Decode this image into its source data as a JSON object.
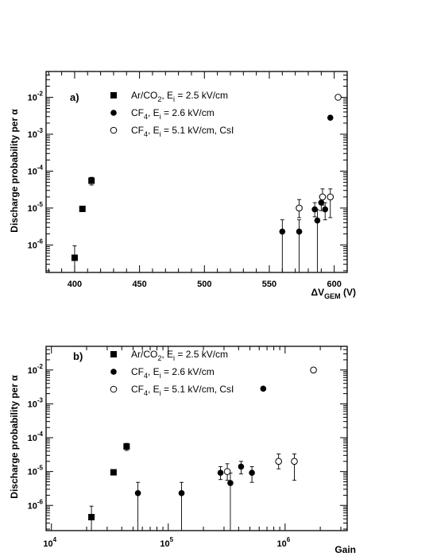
{
  "chart_data": [
    {
      "type": "scatter",
      "panel_label": "a)",
      "xlabel": "ΔV",
      "xlabel_sub": "GEM",
      "xlabel_unit": "(V)",
      "ylabel": "Discharge probability per  α",
      "xscale": "linear",
      "yscale": "log",
      "xlim": [
        378,
        610
      ],
      "ylim": [
        1.8e-07,
        0.05
      ],
      "xticks": [
        {
          "v": 400,
          "l": "400"
        },
        {
          "v": 450,
          "l": "450"
        },
        {
          "v": 500,
          "l": "500"
        },
        {
          "v": 550,
          "l": "550"
        },
        {
          "v": 600,
          "l": "600"
        }
      ],
      "yticks": [
        {
          "v": 1e-06,
          "b": "10",
          "e": "-6"
        },
        {
          "v": 1e-05,
          "b": "10",
          "e": "-5"
        },
        {
          "v": 0.0001,
          "b": "10",
          "e": "-4"
        },
        {
          "v": 0.001,
          "b": "10",
          "e": "-3"
        },
        {
          "v": 0.01,
          "b": "10",
          "e": "-2"
        }
      ],
      "legend": "top-left",
      "series": [
        {
          "name_main": "Ar/CO",
          "name_sub": "2",
          "name_rest": ", E",
          "name_sub2": "i",
          "name_tail": " = 2.5 kV/cm",
          "marker": "square",
          "points": [
            {
              "x": 400,
              "y": 4.5e-07,
              "lo": 1.5e-07,
              "hi": 9.5e-07
            },
            {
              "x": 406,
              "y": 9.5e-06,
              "lo": 8.5e-06,
              "hi": 1.05e-05
            },
            {
              "x": 413,
              "y": 5.5e-05,
              "lo": 4.2e-05,
              "hi": 6.8e-05
            }
          ]
        },
        {
          "name_main": "CF",
          "name_sub": "4",
          "name_rest": ", E",
          "name_sub2": "i",
          "name_tail": " = 2.6 kV/cm",
          "marker": "filled-circle",
          "points": [
            {
              "x": 560,
              "y": 2.3e-06,
              "lo": 1.8e-07,
              "hi": 4.8e-06
            },
            {
              "x": 573,
              "y": 2.3e-06,
              "lo": 1.8e-07,
              "hi": 4.8e-06
            },
            {
              "x": 585,
              "y": 9.2e-06,
              "lo": 5.8e-06,
              "hi": 1.4e-05
            },
            {
              "x": 587,
              "y": 4.6e-06,
              "lo": 1.8e-07,
              "hi": 9e-06
            },
            {
              "x": 590,
              "y": 1.4e-05,
              "lo": 8.5e-06,
              "hi": 2e-05
            },
            {
              "x": 593,
              "y": 9.2e-06,
              "lo": 4.8e-06,
              "hi": 1.4e-05
            },
            {
              "x": 597,
              "y": 0.0028,
              "lo": 0.0028,
              "hi": 0.0028
            }
          ]
        },
        {
          "name_main": "CF",
          "name_sub": "4",
          "name_rest": ", E",
          "name_sub2": "i",
          "name_tail": " = 5.1 kV/cm, CsI",
          "marker": "open-circle",
          "points": [
            {
              "x": 573,
              "y": 1e-05,
              "lo": 5.5e-06,
              "hi": 1.7e-05
            },
            {
              "x": 591,
              "y": 2e-05,
              "lo": 1.2e-05,
              "hi": 3.3e-05
            },
            {
              "x": 597,
              "y": 2e-05,
              "lo": 5.5e-06,
              "hi": 3.3e-05
            },
            {
              "x": 603,
              "y": 0.01,
              "lo": 0.01,
              "hi": 0.01
            }
          ]
        }
      ]
    },
    {
      "type": "scatter",
      "panel_label": "b)",
      "xlabel": "Gain",
      "ylabel": "Discharge probability per  α",
      "xscale": "log",
      "yscale": "log",
      "xlim": [
        9000,
        3400000
      ],
      "ylim": [
        1.8e-07,
        0.05
      ],
      "xticks": [
        {
          "v": 10000,
          "b": "10",
          "e": "4"
        },
        {
          "v": 100000,
          "b": "10",
          "e": "5"
        },
        {
          "v": 1000000,
          "b": "10",
          "e": "6"
        }
      ],
      "yticks": [
        {
          "v": 1e-06,
          "b": "10",
          "e": "-6"
        },
        {
          "v": 1e-05,
          "b": "10",
          "e": "-5"
        },
        {
          "v": 0.0001,
          "b": "10",
          "e": "-4"
        },
        {
          "v": 0.001,
          "b": "10",
          "e": "-3"
        },
        {
          "v": 0.01,
          "b": "10",
          "e": "-2"
        }
      ],
      "legend": "top-left",
      "series": [
        {
          "name_main": "Ar/CO",
          "name_sub": "2",
          "name_rest": ", E",
          "name_sub2": "i",
          "name_tail": " = 2.5 kV/cm",
          "marker": "square",
          "points": [
            {
              "x": 22000,
              "y": 4.5e-07,
              "lo": 1.8e-07,
              "hi": 9.5e-07
            },
            {
              "x": 34000,
              "y": 9.5e-06,
              "lo": 8.5e-06,
              "hi": 1.05e-05
            },
            {
              "x": 44000,
              "y": 5.5e-05,
              "lo": 4.2e-05,
              "hi": 6.8e-05
            }
          ]
        },
        {
          "name_main": "CF",
          "name_sub": "4",
          "name_rest": ", E",
          "name_sub2": "i",
          "name_tail": " = 2.6 kV/cm",
          "marker": "filled-circle",
          "points": [
            {
              "x": 55000,
              "y": 2.3e-06,
              "lo": 1.8e-07,
              "hi": 4.8e-06
            },
            {
              "x": 130000,
              "y": 2.3e-06,
              "lo": 1.8e-07,
              "hi": 4.8e-06
            },
            {
              "x": 280000,
              "y": 9.2e-06,
              "lo": 5.8e-06,
              "hi": 1.4e-05
            },
            {
              "x": 340000,
              "y": 4.6e-06,
              "lo": 1.8e-07,
              "hi": 9e-06
            },
            {
              "x": 420000,
              "y": 1.4e-05,
              "lo": 8.5e-06,
              "hi": 2e-05
            },
            {
              "x": 520000,
              "y": 9.2e-06,
              "lo": 4.8e-06,
              "hi": 1.4e-05
            },
            {
              "x": 650000,
              "y": 0.0028,
              "lo": 0.0028,
              "hi": 0.0028
            }
          ]
        },
        {
          "name_main": "CF",
          "name_sub": "4",
          "name_rest": ", E",
          "name_sub2": "i",
          "name_tail": " = 5.1 kV/cm, CsI",
          "marker": "open-circle",
          "points": [
            {
              "x": 320000,
              "y": 1e-05,
              "lo": 5.5e-06,
              "hi": 1.7e-05
            },
            {
              "x": 880000,
              "y": 2e-05,
              "lo": 1.2e-05,
              "hi": 3.3e-05
            },
            {
              "x": 1200000,
              "y": 2e-05,
              "lo": 5.5e-06,
              "hi": 3.3e-05
            },
            {
              "x": 1750000,
              "y": 0.01,
              "lo": 0.01,
              "hi": 0.01
            }
          ]
        }
      ]
    }
  ]
}
